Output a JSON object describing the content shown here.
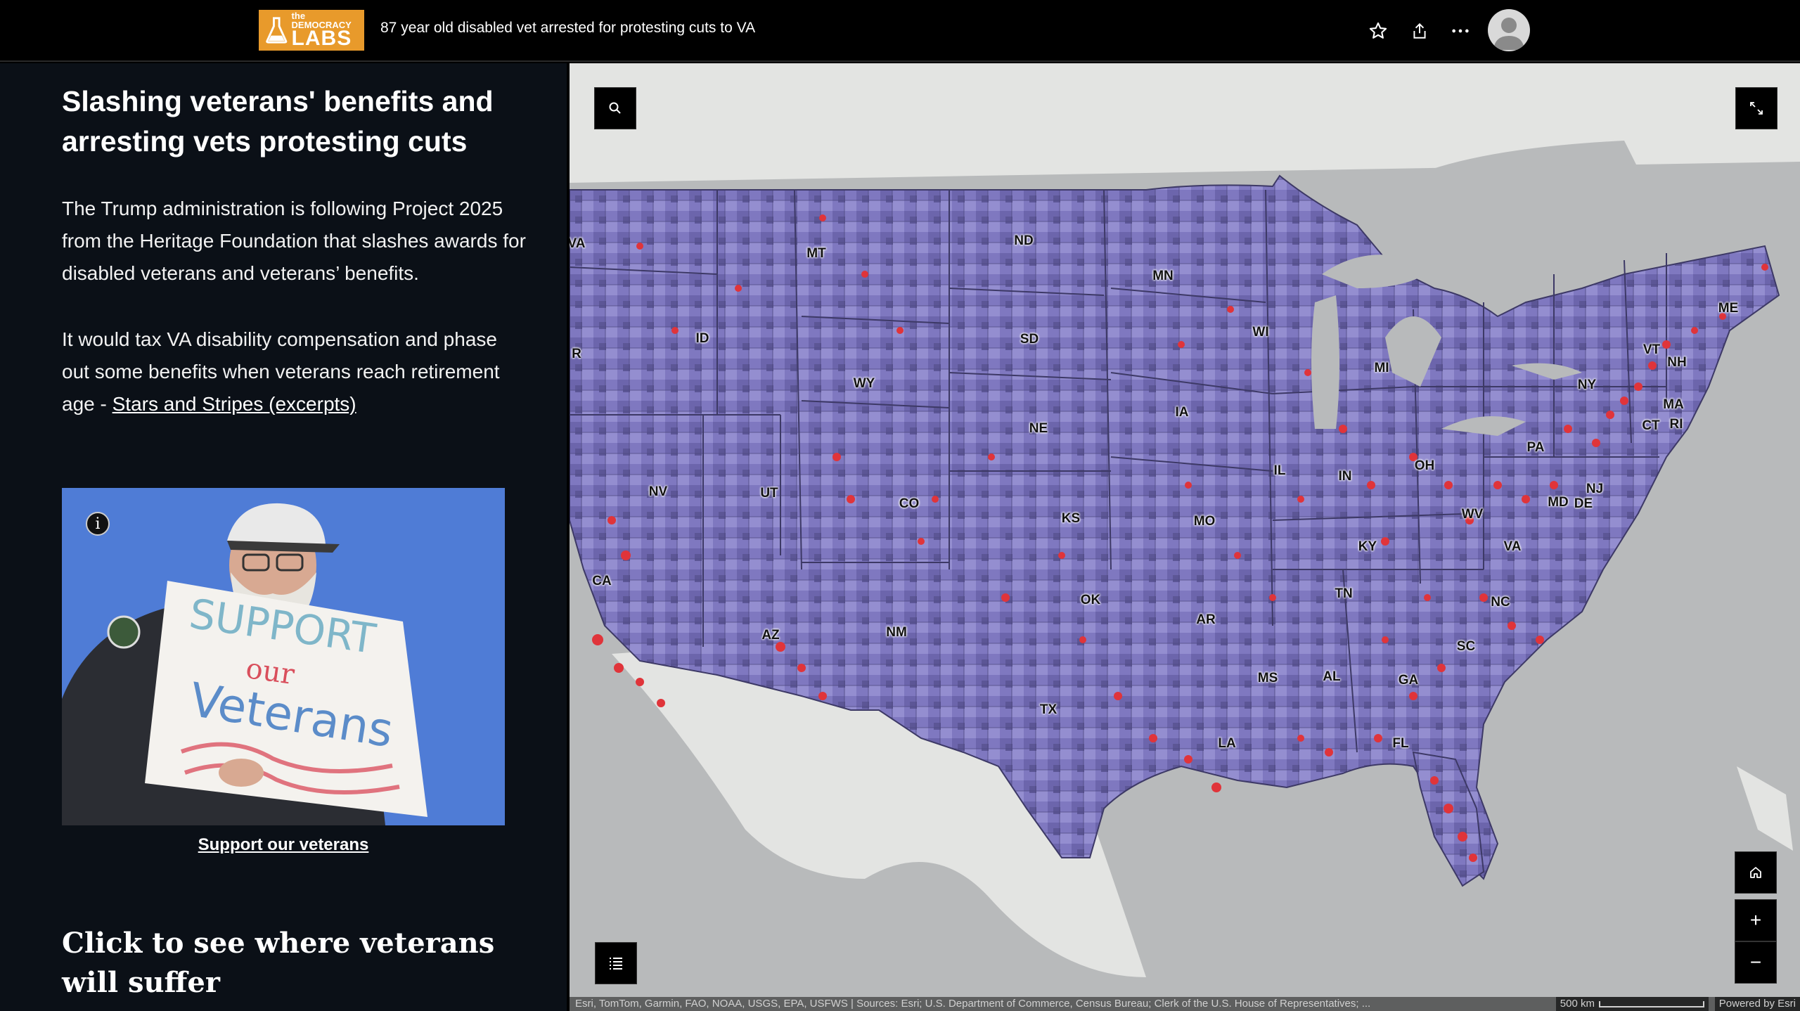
{
  "header": {
    "logo_small": "the DEMOCRACY",
    "logo_big": "LABS",
    "story_title": "87 year old disabled vet arrested for protesting cuts to VA"
  },
  "panel": {
    "title": "Slashing veterans' benefits and arresting vets protesting cuts",
    "para1": "The Trump administration is following Project 2025 from the Heritage Foundation that slashes awards for disabled veterans and veterans’ benefits.",
    "para2_text": "It would tax VA disability compensation and phase out some benefits when veterans reach retirement age - ",
    "para2_link": "Stars and Stripes (excerpts)",
    "photo_sign_lines": [
      "SUPPORT",
      "our",
      "Veterans"
    ],
    "info_glyph": "i",
    "caption": "Support our veterans",
    "section_heading": "Click to see where veterans will suffer"
  },
  "map": {
    "state_labels": [
      "VA",
      "MT",
      "ND",
      "MN",
      "ME",
      "ID",
      "SD",
      "WI",
      "R",
      "WY",
      "MI",
      "VT",
      "NH",
      "NY",
      "MA",
      "IA",
      "NE",
      "CT",
      "RI",
      "PA",
      "NV",
      "UT",
      "IL",
      "IN",
      "OH",
      "NJ",
      "MD",
      "DE",
      "CO",
      "KS",
      "MO",
      "WV",
      "KY",
      "VA",
      "CA",
      "TN",
      "OK",
      "NC",
      "AR",
      "AZ",
      "NM",
      "SC",
      "MS",
      "AL",
      "GA",
      "TX",
      "LA",
      "FL"
    ],
    "attribution": "Esri, TomTom, Garmin, FAO, NOAA, USGS, EPA, USFWS | Sources: Esri; U.S. Department of Commerce, Census Bureau; Clerk of the U.S. House of Representatives; ...",
    "scale_label": "500 km",
    "powered_by": "Powered by Esri",
    "zoom_in": "+",
    "zoom_out": "−"
  },
  "colors": {
    "panel_bg": "#0b1017",
    "logo_bg": "#e89a2b",
    "photo_bg": "#4f7cd6",
    "county_fill": "#7f78c0",
    "dot": "#e0343a"
  }
}
